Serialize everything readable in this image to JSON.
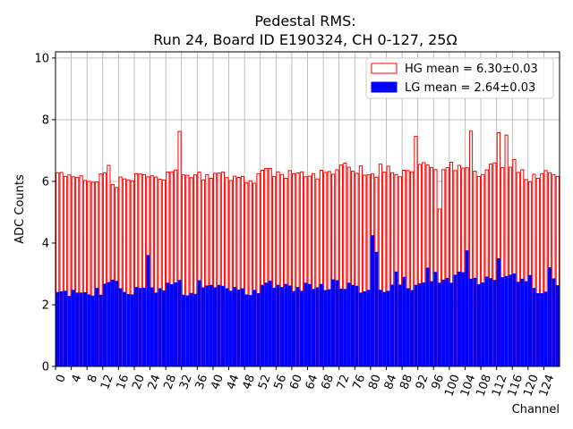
{
  "chart_data": {
    "type": "bar",
    "title_line1": "Pedestal RMS:",
    "title_line2": "Run 24, Board ID E190324, CH 0-127, 25Ω",
    "xlabel": "Channel",
    "ylabel": "ADC Counts",
    "xlim": [
      0,
      128
    ],
    "ylim": [
      0,
      10.2
    ],
    "yticks": [
      0,
      2,
      4,
      6,
      8,
      10
    ],
    "xticks": [
      0,
      4,
      8,
      12,
      16,
      20,
      24,
      28,
      32,
      36,
      40,
      44,
      48,
      52,
      56,
      60,
      64,
      68,
      72,
      76,
      80,
      84,
      88,
      92,
      96,
      100,
      104,
      108,
      112,
      116,
      120,
      124
    ],
    "grid": true,
    "legend_position": "top-right",
    "series": [
      {
        "name": "HG mean = 6.30±0.03",
        "color": "#ff0000",
        "fill": "#ffffff",
        "values": [
          6.28,
          6.29,
          6.16,
          6.21,
          6.15,
          6.13,
          6.18,
          6.03,
          6.0,
          5.97,
          5.98,
          6.24,
          6.28,
          6.52,
          5.9,
          5.8,
          6.14,
          6.08,
          6.05,
          6.02,
          6.25,
          6.24,
          6.22,
          6.15,
          6.18,
          6.14,
          6.07,
          6.05,
          6.3,
          6.31,
          6.37,
          7.62,
          6.21,
          6.2,
          6.12,
          6.21,
          6.3,
          6.05,
          6.22,
          6.1,
          6.26,
          6.27,
          6.3,
          6.12,
          6.03,
          6.17,
          6.13,
          6.16,
          5.95,
          6.02,
          5.94,
          6.25,
          6.36,
          6.42,
          6.42,
          6.16,
          6.31,
          6.22,
          6.1,
          6.35,
          6.25,
          6.27,
          6.31,
          6.15,
          6.17,
          6.25,
          6.08,
          6.36,
          6.29,
          6.32,
          6.23,
          6.38,
          6.53,
          6.59,
          6.46,
          6.33,
          6.26,
          6.5,
          6.2,
          6.21,
          6.24,
          6.14,
          6.56,
          6.3,
          6.49,
          6.28,
          6.22,
          6.15,
          6.36,
          6.35,
          6.31,
          7.46,
          6.55,
          6.61,
          6.53,
          6.45,
          6.38,
          5.1,
          6.38,
          6.45,
          6.62,
          6.35,
          6.52,
          6.43,
          6.44,
          7.63,
          6.33,
          6.16,
          6.22,
          6.37,
          6.56,
          6.6,
          7.58,
          6.45,
          7.5,
          6.46,
          6.71,
          6.29,
          6.38,
          6.06,
          5.98,
          6.23,
          6.1,
          6.25,
          6.35,
          6.28,
          6.22,
          6.16
        ]
      },
      {
        "name": "LG mean = 2.64±0.03",
        "color": "#0000ff",
        "fill": "#0000ff",
        "values": [
          2.4,
          2.42,
          2.44,
          2.27,
          2.47,
          2.38,
          2.38,
          2.39,
          2.32,
          2.28,
          2.53,
          2.31,
          2.67,
          2.72,
          2.8,
          2.76,
          2.52,
          2.4,
          2.33,
          2.32,
          2.56,
          2.53,
          2.54,
          3.6,
          2.55,
          2.38,
          2.52,
          2.45,
          2.7,
          2.65,
          2.71,
          2.79,
          2.31,
          2.29,
          2.37,
          2.34,
          2.78,
          2.55,
          2.61,
          2.63,
          2.55,
          2.63,
          2.6,
          2.52,
          2.44,
          2.56,
          2.48,
          2.52,
          2.32,
          2.3,
          2.47,
          2.36,
          2.63,
          2.7,
          2.77,
          2.54,
          2.63,
          2.56,
          2.66,
          2.61,
          2.43,
          2.56,
          2.44,
          2.7,
          2.66,
          2.5,
          2.55,
          2.66,
          2.46,
          2.49,
          2.81,
          2.78,
          2.51,
          2.5,
          2.7,
          2.63,
          2.6,
          2.38,
          2.42,
          2.47,
          4.24,
          3.7,
          2.47,
          2.4,
          2.44,
          2.64,
          3.06,
          2.64,
          2.89,
          2.52,
          2.46,
          2.63,
          2.68,
          2.71,
          3.19,
          2.75,
          3.05,
          2.7,
          2.8,
          2.86,
          2.7,
          2.96,
          3.06,
          3.04,
          3.75,
          2.83,
          2.86,
          2.65,
          2.71,
          2.9,
          2.85,
          2.79,
          3.49,
          2.88,
          2.92,
          2.96,
          3.0,
          2.73,
          2.83,
          2.75,
          2.95,
          2.53,
          2.36,
          2.36,
          2.41,
          3.2,
          2.84,
          2.62
        ]
      }
    ]
  }
}
